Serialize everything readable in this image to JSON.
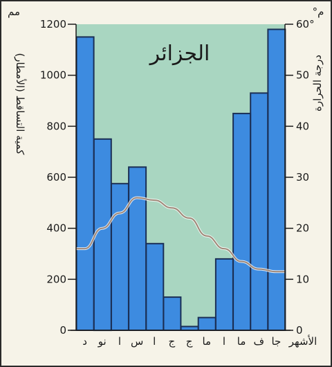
{
  "chart_data": {
    "type": "bar",
    "title": "الجزائر",
    "months_label": "الأشهر",
    "left_axis": {
      "label": "كمية التساقط (الأمطار)",
      "unit": "مم",
      "range": [
        0,
        1200
      ],
      "ticks": [
        "0",
        "200",
        "400",
        "600",
        "800",
        "1000",
        "1200"
      ]
    },
    "right_axis": {
      "label": "درجة الحرارة",
      "unit": "°م",
      "range": [
        0,
        60
      ],
      "ticks": [
        "0",
        "10",
        "20",
        "30",
        "40",
        "50",
        "60°"
      ]
    },
    "categories": [
      "جا",
      "ف",
      "ما",
      "ا",
      "ما",
      "ج",
      "ج",
      "ا",
      "س",
      "ا",
      "نو",
      "د"
    ],
    "series": [
      {
        "kind": "bar",
        "axis": "left",
        "color": "#3d8be0",
        "values": [
          1180,
          930,
          850,
          280,
          50,
          15,
          130,
          340,
          640,
          575,
          750,
          1150
        ]
      },
      {
        "kind": "line",
        "axis": "right",
        "color": "#a08878",
        "values": [
          11.5,
          12,
          13.5,
          16,
          18.5,
          22,
          24,
          25.5,
          26,
          23,
          20,
          16
        ]
      }
    ],
    "background_band_color": "#a9d6c1",
    "grid": false
  }
}
